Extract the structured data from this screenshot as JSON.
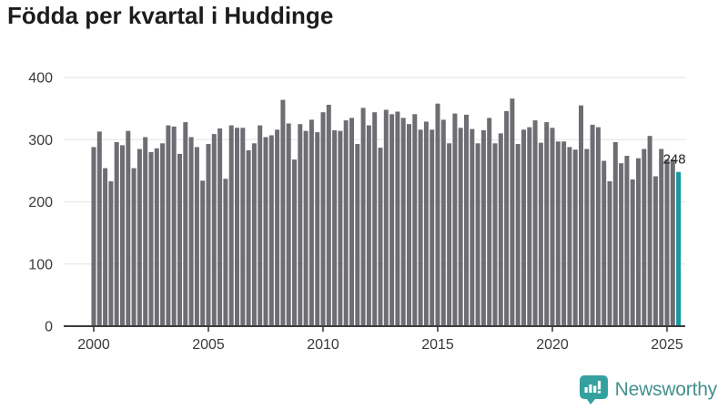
{
  "chart_data": {
    "type": "bar",
    "title": "Födda per kvartal i Huddinge",
    "xlabel": "",
    "ylabel": "",
    "x_unit": "quarter",
    "start_year": 2000,
    "start_quarter": 1,
    "end_year": 2025,
    "end_quarter": 3,
    "x_tick_labels": [
      "2000",
      "2005",
      "2010",
      "2015",
      "2020",
      "2025"
    ],
    "y_ticks": [
      0,
      100,
      200,
      300,
      400
    ],
    "ylim": [
      0,
      400
    ],
    "grid": true,
    "legend": "none",
    "values": [
      288,
      313,
      254,
      233,
      296,
      291,
      314,
      254,
      285,
      304,
      280,
      286,
      294,
      323,
      321,
      277,
      328,
      304,
      288,
      234,
      293,
      309,
      318,
      237,
      323,
      319,
      319,
      283,
      294,
      323,
      304,
      307,
      316,
      364,
      326,
      268,
      325,
      314,
      332,
      312,
      344,
      356,
      315,
      314,
      331,
      335,
      293,
      351,
      323,
      344,
      287,
      348,
      341,
      345,
      335,
      325,
      341,
      316,
      329,
      316,
      358,
      332,
      294,
      342,
      319,
      340,
      317,
      294,
      315,
      335,
      294,
      310,
      346,
      366,
      293,
      316,
      320,
      331,
      295,
      328,
      319,
      297,
      297,
      288,
      284,
      355,
      285,
      324,
      320,
      266,
      233,
      296,
      262,
      274,
      236,
      270,
      285,
      306,
      241,
      285,
      268,
      268,
      248
    ],
    "highlight_index": 102,
    "highlight_value": 248,
    "highlight_label": "248",
    "bar_color": "#6d6d73",
    "highlight_color": "#14999e",
    "axis_color": "#3c3c3c",
    "grid_color": "#e8e8e8",
    "tick_label_color": "#3a3a3a",
    "value_label_color": "#222222"
  },
  "footer": {
    "brand": "Newsworthy",
    "brand_color": "#44908f",
    "icon": "speech-bubble-bar-chart-icon",
    "icon_color": "#35a19f"
  }
}
